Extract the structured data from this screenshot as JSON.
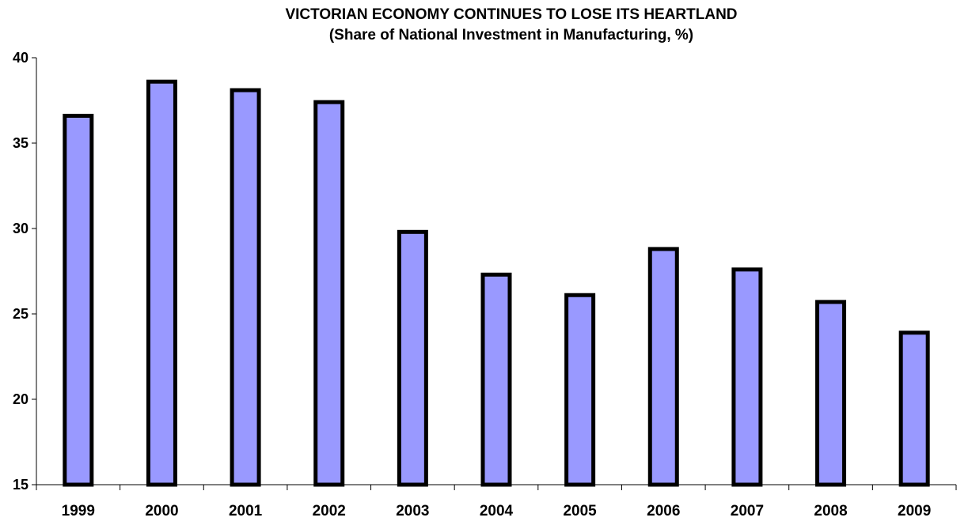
{
  "chart_data": {
    "type": "bar",
    "title": "VICTORIAN ECONOMY CONTINUES TO LOSE ITS HEARTLAND",
    "subtitle": "(Share of National Investment in Manufacturing, %)",
    "xlabel": "",
    "ylabel": "",
    "categories": [
      "1999",
      "2000",
      "2001",
      "2002",
      "2003",
      "2004",
      "2005",
      "2006",
      "2007",
      "2008",
      "2009"
    ],
    "values": [
      36.6,
      38.6,
      38.1,
      37.4,
      29.8,
      27.3,
      26.1,
      28.8,
      27.6,
      25.7,
      23.9
    ],
    "ylim": [
      15,
      40
    ],
    "yticks": [
      "15",
      "20",
      "25",
      "30",
      "35",
      "40"
    ],
    "grid": false,
    "legend": "none",
    "bar_color": "#9999ff",
    "bar_outline": "#000000"
  }
}
